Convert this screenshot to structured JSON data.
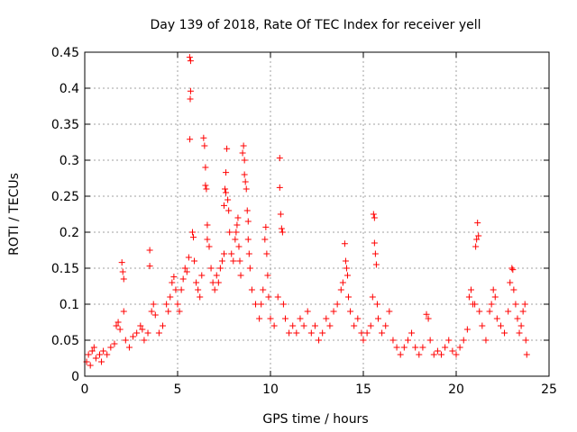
{
  "chart_data": {
    "type": "scatter",
    "title": "Day 139 of 2018, Rate Of TEC Index for receiver yell",
    "xlabel": "GPS time / hours",
    "ylabel": "ROTI / TECUs",
    "xlim": [
      0,
      25
    ],
    "ylim": [
      0,
      0.45
    ],
    "x_ticks": [
      0,
      5,
      10,
      15,
      20,
      25
    ],
    "y_ticks": [
      0,
      0.05,
      0.1,
      0.15,
      0.2,
      0.25,
      0.3,
      0.35,
      0.4,
      0.45
    ],
    "x_tick_labels": [
      "0",
      "5",
      "10",
      "15",
      "20",
      "25"
    ],
    "y_tick_labels": [
      "0",
      "0.05",
      "0.1",
      "0.15",
      "0.2",
      "0.25",
      "0.3",
      "0.35",
      "0.4",
      "0.45"
    ],
    "grid": true,
    "marker": "+",
    "marker_color": "#ff0000",
    "series": [
      {
        "name": "ROTI",
        "points": [
          [
            0.1,
            0.02
          ],
          [
            0.2,
            0.03
          ],
          [
            0.3,
            0.015
          ],
          [
            0.4,
            0.035
          ],
          [
            0.5,
            0.04
          ],
          [
            0.6,
            0.025
          ],
          [
            0.8,
            0.03
          ],
          [
            0.9,
            0.02
          ],
          [
            1.0,
            0.035
          ],
          [
            1.2,
            0.03
          ],
          [
            1.4,
            0.04
          ],
          [
            1.6,
            0.045
          ],
          [
            1.7,
            0.07
          ],
          [
            1.8,
            0.075
          ],
          [
            1.9,
            0.065
          ],
          [
            2.0,
            0.158
          ],
          [
            2.05,
            0.145
          ],
          [
            2.1,
            0.135
          ],
          [
            2.1,
            0.09
          ],
          [
            2.2,
            0.05
          ],
          [
            2.4,
            0.04
          ],
          [
            2.6,
            0.055
          ],
          [
            2.8,
            0.06
          ],
          [
            3.0,
            0.07
          ],
          [
            3.1,
            0.065
          ],
          [
            3.2,
            0.05
          ],
          [
            3.4,
            0.06
          ],
          [
            3.5,
            0.175
          ],
          [
            3.5,
            0.153
          ],
          [
            3.6,
            0.09
          ],
          [
            3.7,
            0.1
          ],
          [
            3.8,
            0.085
          ],
          [
            4.0,
            0.06
          ],
          [
            4.2,
            0.07
          ],
          [
            4.4,
            0.1
          ],
          [
            4.5,
            0.09
          ],
          [
            4.6,
            0.11
          ],
          [
            4.7,
            0.13
          ],
          [
            4.8,
            0.138
          ],
          [
            4.9,
            0.12
          ],
          [
            5.0,
            0.1
          ],
          [
            5.1,
            0.09
          ],
          [
            5.2,
            0.12
          ],
          [
            5.3,
            0.135
          ],
          [
            5.4,
            0.15
          ],
          [
            5.5,
            0.145
          ],
          [
            5.6,
            0.165
          ],
          [
            5.65,
            0.443
          ],
          [
            5.7,
            0.438
          ],
          [
            5.7,
            0.396
          ],
          [
            5.68,
            0.385
          ],
          [
            5.66,
            0.329
          ],
          [
            5.8,
            0.2
          ],
          [
            5.85,
            0.193
          ],
          [
            5.9,
            0.16
          ],
          [
            6.0,
            0.13
          ],
          [
            6.1,
            0.12
          ],
          [
            6.2,
            0.11
          ],
          [
            6.3,
            0.14
          ],
          [
            6.4,
            0.331
          ],
          [
            6.45,
            0.32
          ],
          [
            6.5,
            0.29
          ],
          [
            6.5,
            0.265
          ],
          [
            6.55,
            0.26
          ],
          [
            6.6,
            0.21
          ],
          [
            6.6,
            0.19
          ],
          [
            6.7,
            0.18
          ],
          [
            6.8,
            0.15
          ],
          [
            6.9,
            0.13
          ],
          [
            7.0,
            0.12
          ],
          [
            7.1,
            0.14
          ],
          [
            7.2,
            0.13
          ],
          [
            7.3,
            0.15
          ],
          [
            7.4,
            0.16
          ],
          [
            7.5,
            0.17
          ],
          [
            7.5,
            0.237
          ],
          [
            7.55,
            0.26
          ],
          [
            7.6,
            0.283
          ],
          [
            7.6,
            0.255
          ],
          [
            7.65,
            0.316
          ],
          [
            7.7,
            0.245
          ],
          [
            7.75,
            0.23
          ],
          [
            7.8,
            0.2
          ],
          [
            7.9,
            0.17
          ],
          [
            8.0,
            0.16
          ],
          [
            8.1,
            0.19
          ],
          [
            8.15,
            0.2
          ],
          [
            8.2,
            0.21
          ],
          [
            8.25,
            0.22
          ],
          [
            8.3,
            0.18
          ],
          [
            8.35,
            0.16
          ],
          [
            8.4,
            0.14
          ],
          [
            8.5,
            0.31
          ],
          [
            8.55,
            0.32
          ],
          [
            8.6,
            0.3
          ],
          [
            8.6,
            0.28
          ],
          [
            8.65,
            0.27
          ],
          [
            8.7,
            0.26
          ],
          [
            8.75,
            0.23
          ],
          [
            8.8,
            0.215
          ],
          [
            8.8,
            0.19
          ],
          [
            8.85,
            0.17
          ],
          [
            8.9,
            0.15
          ],
          [
            9.0,
            0.12
          ],
          [
            9.2,
            0.1
          ],
          [
            9.4,
            0.08
          ],
          [
            9.5,
            0.1
          ],
          [
            9.6,
            0.12
          ],
          [
            9.7,
            0.19
          ],
          [
            9.75,
            0.207
          ],
          [
            9.8,
            0.17
          ],
          [
            9.85,
            0.14
          ],
          [
            9.9,
            0.11
          ],
          [
            10.0,
            0.08
          ],
          [
            10.2,
            0.07
          ],
          [
            10.4,
            0.11
          ],
          [
            10.5,
            0.303
          ],
          [
            10.5,
            0.262
          ],
          [
            10.55,
            0.225
          ],
          [
            10.6,
            0.205
          ],
          [
            10.65,
            0.2
          ],
          [
            10.7,
            0.1
          ],
          [
            10.8,
            0.08
          ],
          [
            11.0,
            0.06
          ],
          [
            11.2,
            0.07
          ],
          [
            11.4,
            0.06
          ],
          [
            11.6,
            0.08
          ],
          [
            11.8,
            0.07
          ],
          [
            12.0,
            0.09
          ],
          [
            12.2,
            0.06
          ],
          [
            12.4,
            0.07
          ],
          [
            12.6,
            0.05
          ],
          [
            12.8,
            0.06
          ],
          [
            13.0,
            0.08
          ],
          [
            13.2,
            0.07
          ],
          [
            13.4,
            0.09
          ],
          [
            13.6,
            0.1
          ],
          [
            13.8,
            0.12
          ],
          [
            13.9,
            0.13
          ],
          [
            14.0,
            0.184
          ],
          [
            14.05,
            0.16
          ],
          [
            14.1,
            0.15
          ],
          [
            14.15,
            0.14
          ],
          [
            14.2,
            0.11
          ],
          [
            14.3,
            0.09
          ],
          [
            14.5,
            0.07
          ],
          [
            14.7,
            0.08
          ],
          [
            14.9,
            0.06
          ],
          [
            15.0,
            0.05
          ],
          [
            15.2,
            0.06
          ],
          [
            15.4,
            0.07
          ],
          [
            15.5,
            0.11
          ],
          [
            15.55,
            0.225
          ],
          [
            15.6,
            0.22
          ],
          [
            15.6,
            0.185
          ],
          [
            15.65,
            0.17
          ],
          [
            15.7,
            0.155
          ],
          [
            15.75,
            0.1
          ],
          [
            15.8,
            0.08
          ],
          [
            16.0,
            0.06
          ],
          [
            16.2,
            0.07
          ],
          [
            16.4,
            0.09
          ],
          [
            16.6,
            0.05
          ],
          [
            16.8,
            0.04
          ],
          [
            17.0,
            0.03
          ],
          [
            17.2,
            0.04
          ],
          [
            17.4,
            0.05
          ],
          [
            17.6,
            0.06
          ],
          [
            17.8,
            0.04
          ],
          [
            18.0,
            0.03
          ],
          [
            18.2,
            0.04
          ],
          [
            18.4,
            0.086
          ],
          [
            18.5,
            0.08
          ],
          [
            18.6,
            0.05
          ],
          [
            18.8,
            0.03
          ],
          [
            19.0,
            0.035
          ],
          [
            19.2,
            0.03
          ],
          [
            19.4,
            0.04
          ],
          [
            19.6,
            0.05
          ],
          [
            19.8,
            0.035
          ],
          [
            20.0,
            0.03
          ],
          [
            20.2,
            0.04
          ],
          [
            20.4,
            0.05
          ],
          [
            20.6,
            0.065
          ],
          [
            20.7,
            0.11
          ],
          [
            20.8,
            0.12
          ],
          [
            20.9,
            0.1
          ],
          [
            21.0,
            0.1
          ],
          [
            21.05,
            0.18
          ],
          [
            21.1,
            0.19
          ],
          [
            21.15,
            0.213
          ],
          [
            21.2,
            0.195
          ],
          [
            21.25,
            0.09
          ],
          [
            21.4,
            0.07
          ],
          [
            21.6,
            0.05
          ],
          [
            21.8,
            0.09
          ],
          [
            21.9,
            0.1
          ],
          [
            22.0,
            0.12
          ],
          [
            22.1,
            0.11
          ],
          [
            22.2,
            0.08
          ],
          [
            22.4,
            0.07
          ],
          [
            22.6,
            0.06
          ],
          [
            22.8,
            0.09
          ],
          [
            22.9,
            0.13
          ],
          [
            23.0,
            0.15
          ],
          [
            23.05,
            0.148
          ],
          [
            23.1,
            0.12
          ],
          [
            23.2,
            0.1
          ],
          [
            23.3,
            0.08
          ],
          [
            23.4,
            0.06
          ],
          [
            23.5,
            0.07
          ],
          [
            23.6,
            0.09
          ],
          [
            23.7,
            0.1
          ],
          [
            23.75,
            0.05
          ],
          [
            23.8,
            0.03
          ]
        ]
      }
    ]
  }
}
